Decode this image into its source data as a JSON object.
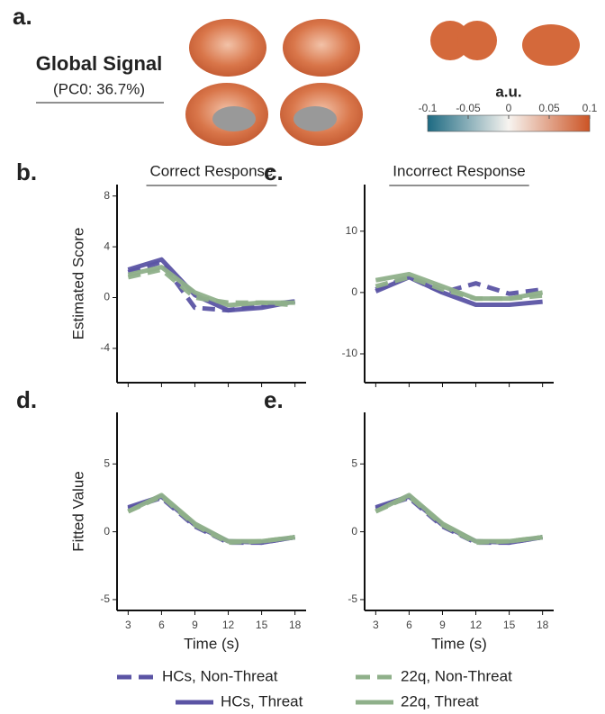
{
  "header": {
    "label": "a.",
    "title": "Global Signal",
    "subtitle": "(PC0: 36.7%)"
  },
  "colorbar": {
    "title": "a.u.",
    "lim": [
      -0.1,
      0.1
    ],
    "ticks": [
      -0.1,
      -0.05,
      0,
      0.05,
      0.1
    ]
  },
  "chart_data": [
    {
      "type": "line",
      "label": "b.",
      "title": "Correct Response",
      "ylabel": "Estimated Score",
      "x": [
        3,
        6,
        9,
        12,
        15,
        18
      ],
      "xlim": [
        2,
        19
      ],
      "ylim": [
        -6.7,
        8.9
      ],
      "yticks": [
        -4,
        0,
        4,
        8
      ],
      "series": [
        {
          "name": "HCs, Non-Threat",
          "color": "#5b54a4",
          "dash": true,
          "values": [
            2.0,
            2.8,
            -0.8,
            -1.0,
            -0.6,
            -0.3
          ]
        },
        {
          "name": "HCs, Threat",
          "color": "#5b54a4",
          "dash": false,
          "values": [
            2.2,
            3.0,
            0.2,
            -1.0,
            -0.8,
            -0.3
          ]
        },
        {
          "name": "22q, Non-Threat",
          "color": "#8fb08a",
          "dash": true,
          "values": [
            1.6,
            2.2,
            0.0,
            -0.4,
            -0.4,
            -0.6
          ]
        },
        {
          "name": "22q, Threat",
          "color": "#8fb08a",
          "dash": false,
          "values": [
            1.8,
            2.4,
            0.4,
            -0.6,
            -0.4,
            -0.4
          ]
        }
      ]
    },
    {
      "type": "line",
      "label": "c.",
      "title": "Incorrect Response",
      "x": [
        3,
        6,
        9,
        12,
        15,
        18
      ],
      "xlim": [
        2,
        19
      ],
      "ylim": [
        -14.7,
        17.6
      ],
      "yticks": [
        -10,
        0,
        10
      ],
      "series": [
        {
          "name": "HCs, Non-Threat",
          "color": "#5b54a4",
          "dash": true,
          "values": [
            0.5,
            2.5,
            0.0,
            1.5,
            -0.2,
            0.5
          ]
        },
        {
          "name": "HCs, Threat",
          "color": "#5b54a4",
          "dash": false,
          "values": [
            0.2,
            2.5,
            0.0,
            -2.0,
            -2.0,
            -1.5
          ]
        },
        {
          "name": "22q, Non-Threat",
          "color": "#8fb08a",
          "dash": true,
          "values": [
            1.0,
            2.5,
            0.5,
            -1.0,
            -1.0,
            -0.5
          ]
        },
        {
          "name": "22q, Threat",
          "color": "#8fb08a",
          "dash": false,
          "values": [
            2.0,
            3.0,
            1.0,
            -1.0,
            -1.0,
            0.0
          ]
        }
      ]
    },
    {
      "type": "line",
      "label": "d.",
      "ylabel": "Fitted Value",
      "xlabel": "Time (s)",
      "x": [
        3,
        6,
        9,
        12,
        15,
        18
      ],
      "xlim": [
        2,
        19
      ],
      "xticks": [
        3,
        6,
        9,
        12,
        15,
        18
      ],
      "ylim": [
        -5.8,
        8.8
      ],
      "yticks": [
        -5,
        0,
        5
      ],
      "series": [
        {
          "name": "HCs, Non-Threat",
          "color": "#5b54a4",
          "dash": true,
          "values": [
            1.7,
            2.5,
            0.4,
            -0.8,
            -0.8,
            -0.4
          ]
        },
        {
          "name": "HCs, Threat",
          "color": "#5b54a4",
          "dash": false,
          "values": [
            1.8,
            2.6,
            0.5,
            -0.7,
            -0.8,
            -0.4
          ]
        },
        {
          "name": "22q, Non-Threat",
          "color": "#8fb08a",
          "dash": true,
          "values": [
            1.5,
            2.6,
            0.5,
            -0.8,
            -0.7,
            -0.4
          ]
        },
        {
          "name": "22q, Threat",
          "color": "#8fb08a",
          "dash": false,
          "values": [
            1.5,
            2.7,
            0.6,
            -0.7,
            -0.7,
            -0.4
          ]
        }
      ]
    },
    {
      "type": "line",
      "label": "e.",
      "xlabel": "Time (s)",
      "x": [
        3,
        6,
        9,
        12,
        15,
        18
      ],
      "xlim": [
        2,
        19
      ],
      "xticks": [
        3,
        6,
        9,
        12,
        15,
        18
      ],
      "ylim": [
        -5.8,
        8.8
      ],
      "yticks": [
        -5,
        0,
        5
      ],
      "series": [
        {
          "name": "HCs, Non-Threat",
          "color": "#5b54a4",
          "dash": true,
          "values": [
            1.7,
            2.5,
            0.4,
            -0.8,
            -0.8,
            -0.4
          ]
        },
        {
          "name": "HCs, Threat",
          "color": "#5b54a4",
          "dash": false,
          "values": [
            1.8,
            2.6,
            0.5,
            -0.7,
            -0.8,
            -0.4
          ]
        },
        {
          "name": "22q, Non-Threat",
          "color": "#8fb08a",
          "dash": true,
          "values": [
            1.5,
            2.6,
            0.5,
            -0.8,
            -0.7,
            -0.4
          ]
        },
        {
          "name": "22q, Threat",
          "color": "#8fb08a",
          "dash": false,
          "values": [
            1.5,
            2.7,
            0.6,
            -0.7,
            -0.7,
            -0.4
          ]
        }
      ]
    }
  ]
}
